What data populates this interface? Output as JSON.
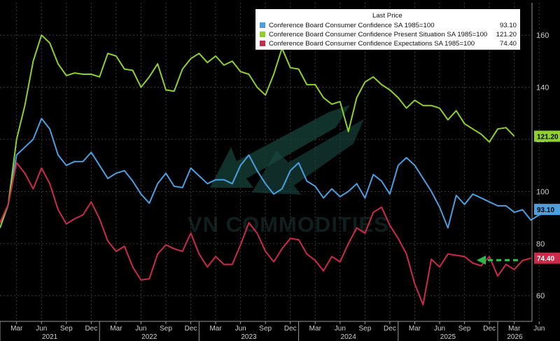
{
  "chart_data": {
    "type": "line",
    "legend": {
      "header": "Last Price",
      "placement": "top-right"
    },
    "watermark": "VN COMMODITIES",
    "x_month_labels": [
      "Mar",
      "Jun",
      "Sep",
      "Dec",
      "Mar",
      "Jun",
      "Sep",
      "Dec",
      "Mar",
      "Jun",
      "Sep",
      "Dec",
      "Mar",
      "Jun",
      "Sep",
      "Dec",
      "Mar",
      "Jun",
      "Sep",
      "Dec",
      "Mar",
      "Jun"
    ],
    "x_year_labels": [
      "2021",
      "2022",
      "2023",
      "2024",
      "2025",
      "2026"
    ],
    "y_ticks": [
      60,
      80,
      100,
      120,
      140,
      160
    ],
    "ylim": [
      52,
      170
    ],
    "x_start": "2021-01",
    "grid": true,
    "series": [
      {
        "name": "Conference Board Consumer Confidence SA 1985=100",
        "color": "#4a9fe0",
        "last": "93.10",
        "values": [
          88,
          95,
          114,
          117,
          120,
          128,
          124,
          114,
          110,
          111.5,
          111.5,
          115,
          110,
          105,
          107,
          108,
          104,
          99,
          95.5,
          103,
          107,
          102,
          101.5,
          109,
          106,
          103,
          104.5,
          104.5,
          103,
          110,
          114,
          108,
          103,
          99,
          101,
          108,
          111,
          104,
          102,
          97.5,
          101,
          98,
          100,
          103,
          97.5,
          106.5,
          104,
          99,
          110,
          113,
          110,
          105,
          100,
          94,
          86,
          98.5,
          95,
          99,
          97.5,
          96,
          94.5,
          94.5,
          92,
          93,
          89,
          91,
          92,
          93,
          94,
          93.1
        ]
      },
      {
        "name": "Conference Board Consumer Confidence Present Situation SA 1985=100",
        "color": "#8ed12e",
        "last": "121.20",
        "values": [
          86,
          95,
          120,
          133,
          150,
          160,
          157,
          149,
          144.5,
          145.5,
          145,
          145,
          144,
          153,
          152,
          147,
          146.5,
          140,
          144,
          149,
          139,
          138.5,
          147,
          151,
          153,
          149.5,
          152,
          148.5,
          150,
          146,
          145,
          140,
          137,
          145,
          155,
          147.5,
          147,
          141,
          141,
          136,
          133.5,
          134.5,
          123,
          136,
          142,
          144,
          141,
          139,
          136,
          132,
          135,
          133,
          133,
          132,
          127.5,
          131,
          126,
          124,
          122,
          119,
          124,
          124.5,
          121.2
        ]
      },
      {
        "name": "Conference Board Consumer Confidence Expectations SA 1985=100",
        "color": "#cc2a4a",
        "last": "74.40",
        "values": [
          88,
          95,
          111,
          107,
          101,
          109,
          103,
          93,
          87.5,
          89.5,
          91,
          96,
          89.5,
          81,
          77,
          79,
          71,
          66,
          66.5,
          76,
          79.5,
          78,
          77,
          84,
          76,
          71,
          75,
          72,
          72,
          79.5,
          88,
          84,
          77,
          73,
          78,
          82,
          81.5,
          76,
          73.5,
          69.5,
          75,
          73,
          80,
          86,
          84,
          92,
          94,
          87,
          82,
          76,
          64.5,
          56.5,
          74,
          71,
          76,
          75.5,
          75,
          72.5,
          71.5,
          75,
          67.5,
          72,
          70,
          73.5,
          74.4
        ]
      }
    ]
  }
}
